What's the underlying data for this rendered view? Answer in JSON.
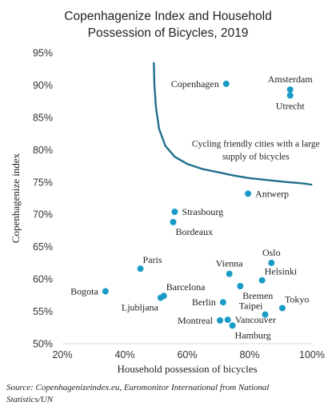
{
  "chart_data": {
    "type": "scatter",
    "title_line1": "Copenhagenize Index and Household",
    "title_line2": "Possession of Bicycles, 2019",
    "xlabel": "Household possession of bicycles",
    "ylabel": "Copenhagenize index",
    "xlim": [
      0.2,
      1.0
    ],
    "ylim": [
      0.5,
      0.95
    ],
    "x_ticks": [
      {
        "value": 0.2,
        "label": "20%"
      },
      {
        "value": 0.4,
        "label": "40%"
      },
      {
        "value": 0.6,
        "label": "60%"
      },
      {
        "value": 0.8,
        "label": "80%"
      },
      {
        "value": 1.0,
        "label": "100%"
      }
    ],
    "y_ticks": [
      {
        "value": 0.5,
        "label": "50%"
      },
      {
        "value": 0.55,
        "label": "55%"
      },
      {
        "value": 0.6,
        "label": "60%"
      },
      {
        "value": 0.65,
        "label": "65%"
      },
      {
        "value": 0.7,
        "label": "70%"
      },
      {
        "value": 0.75,
        "label": "75%"
      },
      {
        "value": 0.8,
        "label": "80%"
      },
      {
        "value": 0.85,
        "label": "85%"
      },
      {
        "value": 0.9,
        "label": "90%"
      },
      {
        "value": 0.95,
        "label": "95%"
      }
    ],
    "grid": false,
    "point_color": "#1a9bc7",
    "curve_color": "#1f6f8b",
    "points": [
      {
        "name": "Copenhagen",
        "x": 0.725,
        "y": 0.902,
        "label_pos": "left"
      },
      {
        "name": "Amsterdam",
        "x": 0.93,
        "y": 0.893,
        "label_pos": "above"
      },
      {
        "name": "Utrecht",
        "x": 0.93,
        "y": 0.884,
        "label_pos": "below"
      },
      {
        "name": "Antwerp",
        "x": 0.795,
        "y": 0.732,
        "label_pos": "right"
      },
      {
        "name": "Strasbourg",
        "x": 0.56,
        "y": 0.704,
        "label_pos": "right"
      },
      {
        "name": "Bordeaux",
        "x": 0.555,
        "y": 0.688,
        "label_pos": "below-right"
      },
      {
        "name": "Oslo",
        "x": 0.87,
        "y": 0.625,
        "label_pos": "above"
      },
      {
        "name": "Vienna",
        "x": 0.735,
        "y": 0.608,
        "label_pos": "above"
      },
      {
        "name": "Helsinki",
        "x": 0.84,
        "y": 0.598,
        "label_pos": "above-right"
      },
      {
        "name": "Paris",
        "x": 0.45,
        "y": 0.616,
        "label_pos": "above-right"
      },
      {
        "name": "Bremen",
        "x": 0.77,
        "y": 0.589,
        "label_pos": "below-right"
      },
      {
        "name": "Bogota",
        "x": 0.338,
        "y": 0.581,
        "label_pos": "left"
      },
      {
        "name": "Barcelona",
        "x": 0.525,
        "y": 0.574,
        "label_pos": "above-right"
      },
      {
        "name": "Ljubljana",
        "x": 0.515,
        "y": 0.571,
        "label_pos": "below-left"
      },
      {
        "name": "Tokyo",
        "x": 0.905,
        "y": 0.555,
        "label_pos": "above-right"
      },
      {
        "name": "Berlin",
        "x": 0.715,
        "y": 0.564,
        "label_pos": "left"
      },
      {
        "name": "Taipei",
        "x": 0.85,
        "y": 0.545,
        "label_pos": "above-left"
      },
      {
        "name": "Vancouver",
        "x": 0.73,
        "y": 0.537,
        "label_pos": "right"
      },
      {
        "name": "Montreal",
        "x": 0.705,
        "y": 0.536,
        "label_pos": "left"
      },
      {
        "name": "Hamburg",
        "x": 0.745,
        "y": 0.528,
        "label_pos": "below-right"
      }
    ],
    "annotation": {
      "line1": "Cycling friendly cities with a large",
      "line2": "supply of bicycles",
      "x": 0.82,
      "y": 0.8
    },
    "curve": [
      [
        0.493,
        0.934
      ],
      [
        0.495,
        0.9
      ],
      [
        0.5,
        0.865
      ],
      [
        0.51,
        0.832
      ],
      [
        0.53,
        0.806
      ],
      [
        0.56,
        0.789
      ],
      [
        0.6,
        0.778
      ],
      [
        0.65,
        0.77
      ],
      [
        0.7,
        0.765
      ],
      [
        0.75,
        0.76
      ],
      [
        0.8,
        0.756
      ],
      [
        0.86,
        0.753
      ],
      [
        0.92,
        0.75
      ],
      [
        0.97,
        0.748
      ],
      [
        0.998,
        0.746
      ]
    ]
  },
  "source_line1": "Source: Copenhagenizeindex.eu, Euromonitor International from National",
  "source_line2": "Statistics/UN"
}
